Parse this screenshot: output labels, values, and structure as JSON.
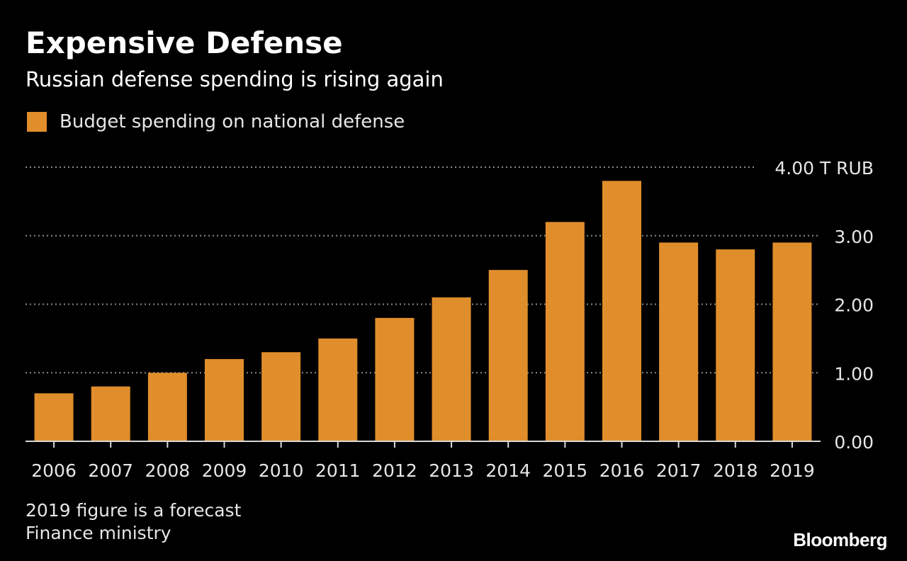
{
  "header": {
    "title": "Expensive Defense",
    "subtitle": "Russian defense spending is rising again"
  },
  "footer": {
    "note": "2019 figure is a forecast",
    "source": "Finance ministry",
    "brand": "Bloomberg"
  },
  "colors": {
    "background": "#000000",
    "bar": "#E08E2B",
    "gridline": "#8a8a8a",
    "text": "#ffffff"
  },
  "chart_data": {
    "type": "bar",
    "title": "Expensive Defense",
    "subtitle": "Russian defense spending is rising again",
    "categories": [
      "2006",
      "2007",
      "2008",
      "2009",
      "2010",
      "2011",
      "2012",
      "2013",
      "2014",
      "2015",
      "2016",
      "2017",
      "2018",
      "2019"
    ],
    "series": [
      {
        "name": "Budget spending on national defense",
        "values": [
          0.7,
          0.8,
          1.0,
          1.2,
          1.3,
          1.5,
          1.8,
          2.1,
          2.5,
          3.2,
          3.8,
          2.9,
          2.8,
          2.9
        ]
      }
    ],
    "ylim": [
      0,
      4
    ],
    "yticks": [
      0,
      1,
      2,
      3,
      4
    ],
    "ytick_labels": [
      "0.00",
      "1.00",
      "2.00",
      "3.00",
      "4.00 T RUB"
    ],
    "ylabel": "",
    "xlabel": "",
    "grid": true,
    "axis_side": "right",
    "legend_position": "top-left"
  }
}
